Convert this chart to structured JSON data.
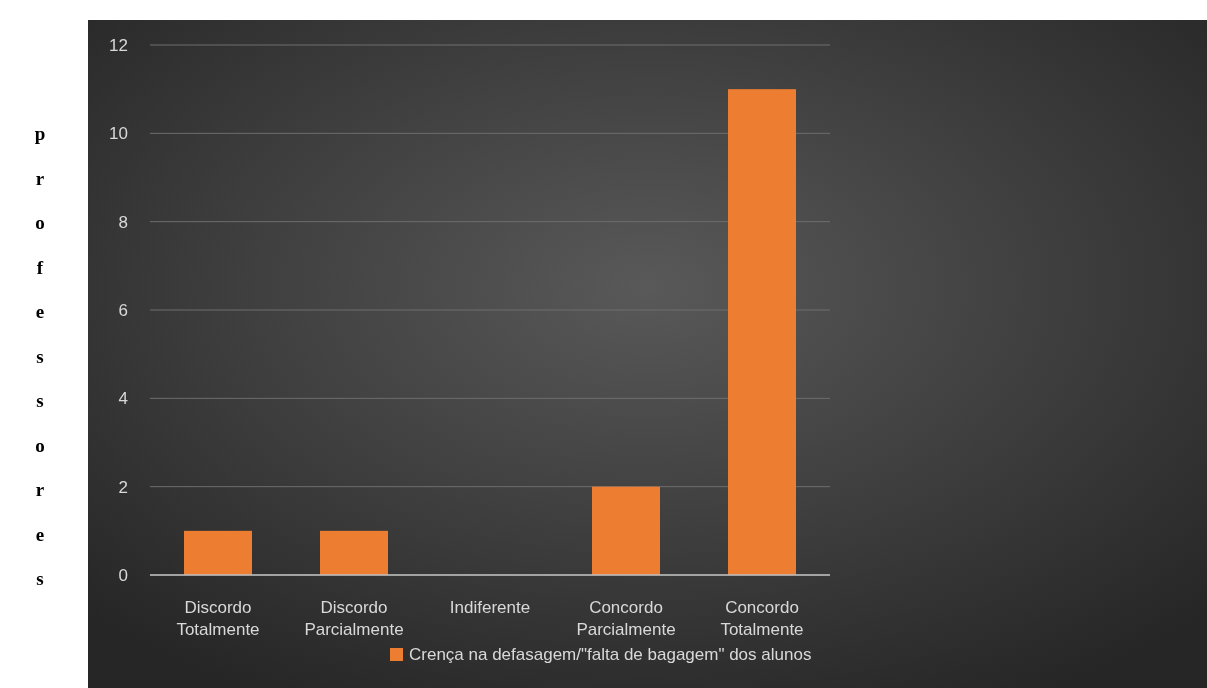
{
  "chart_data": {
    "type": "bar",
    "ylabel": "professores",
    "categories": [
      "Discordo Totalmente",
      "Discordo Parcialmente",
      "Indiferente",
      "Concordo Parcialmente",
      "Concordo Totalmente"
    ],
    "series": [
      {
        "name": "Crença na defasagem/\"falta de bagagem\" dos alunos",
        "color": "#ed7d31",
        "values": [
          1,
          1,
          0,
          2,
          11
        ]
      }
    ],
    "ylim": [
      0,
      12
    ],
    "yticks": [
      0,
      2,
      4,
      6,
      8,
      10,
      12
    ],
    "grid": "y",
    "legend": "bottom"
  }
}
